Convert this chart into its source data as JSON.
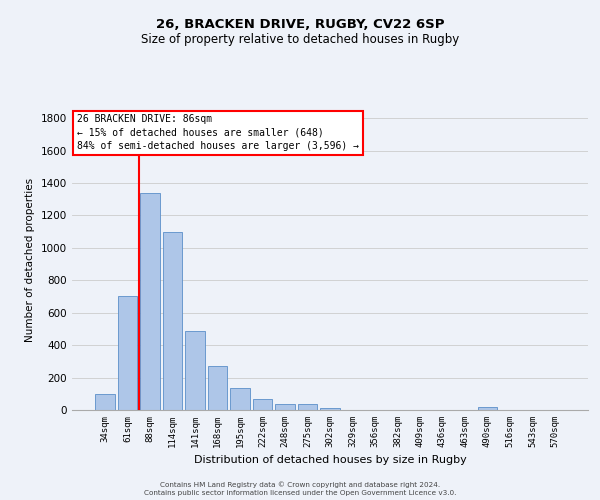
{
  "title1": "26, BRACKEN DRIVE, RUGBY, CV22 6SP",
  "title2": "Size of property relative to detached houses in Rugby",
  "xlabel": "Distribution of detached houses by size in Rugby",
  "ylabel": "Number of detached properties",
  "footer1": "Contains HM Land Registry data © Crown copyright and database right 2024.",
  "footer2": "Contains public sector information licensed under the Open Government Licence v3.0.",
  "bar_labels": [
    "34sqm",
    "61sqm",
    "88sqm",
    "114sqm",
    "141sqm",
    "168sqm",
    "195sqm",
    "222sqm",
    "248sqm",
    "275sqm",
    "302sqm",
    "329sqm",
    "356sqm",
    "382sqm",
    "409sqm",
    "436sqm",
    "463sqm",
    "490sqm",
    "516sqm",
    "543sqm",
    "570sqm"
  ],
  "bar_values": [
    100,
    700,
    1340,
    1100,
    490,
    270,
    135,
    70,
    35,
    35,
    15,
    0,
    0,
    0,
    0,
    0,
    0,
    20,
    0,
    0,
    0
  ],
  "bar_color": "#aec6e8",
  "bar_edge_color": "#5b8fc9",
  "vline_color": "red",
  "ylim": [
    0,
    1850
  ],
  "yticks": [
    0,
    200,
    400,
    600,
    800,
    1000,
    1200,
    1400,
    1600,
    1800
  ],
  "annotation_text": "26 BRACKEN DRIVE: 86sqm\n← 15% of detached houses are smaller (648)\n84% of semi-detached houses are larger (3,596) →",
  "annotation_box_color": "white",
  "annotation_box_edge_color": "red",
  "grid_color": "#cccccc",
  "background_color": "#eef2f9"
}
